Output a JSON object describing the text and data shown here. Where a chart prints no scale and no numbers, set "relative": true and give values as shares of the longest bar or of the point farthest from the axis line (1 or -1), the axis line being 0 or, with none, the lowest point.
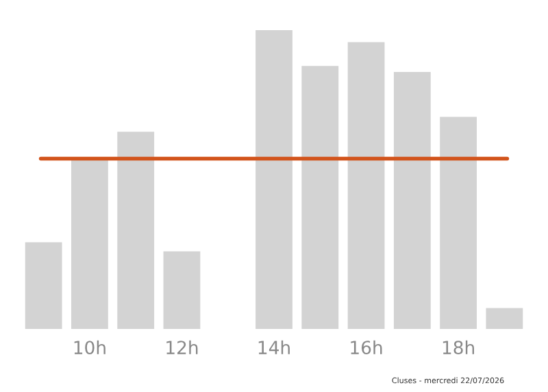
{
  "chart_data": {
    "type": "bar",
    "relative": true,
    "categories": [
      null,
      "10h",
      null,
      "12h",
      null,
      "14h",
      null,
      "16h",
      null,
      "18h",
      null
    ],
    "values": [
      0.29,
      0.57,
      0.66,
      0.26,
      0,
      1,
      0.88,
      0.96,
      0.86,
      0.71,
      0.07
    ],
    "color": "#d3d3d3",
    "ref_lines": [
      {
        "axis": "y",
        "value": 0.57,
        "color": "#d2541c"
      }
    ],
    "annotations": [
      "Cluses - mercredi 22/07/2026"
    ],
    "grid": false,
    "legend": false
  }
}
